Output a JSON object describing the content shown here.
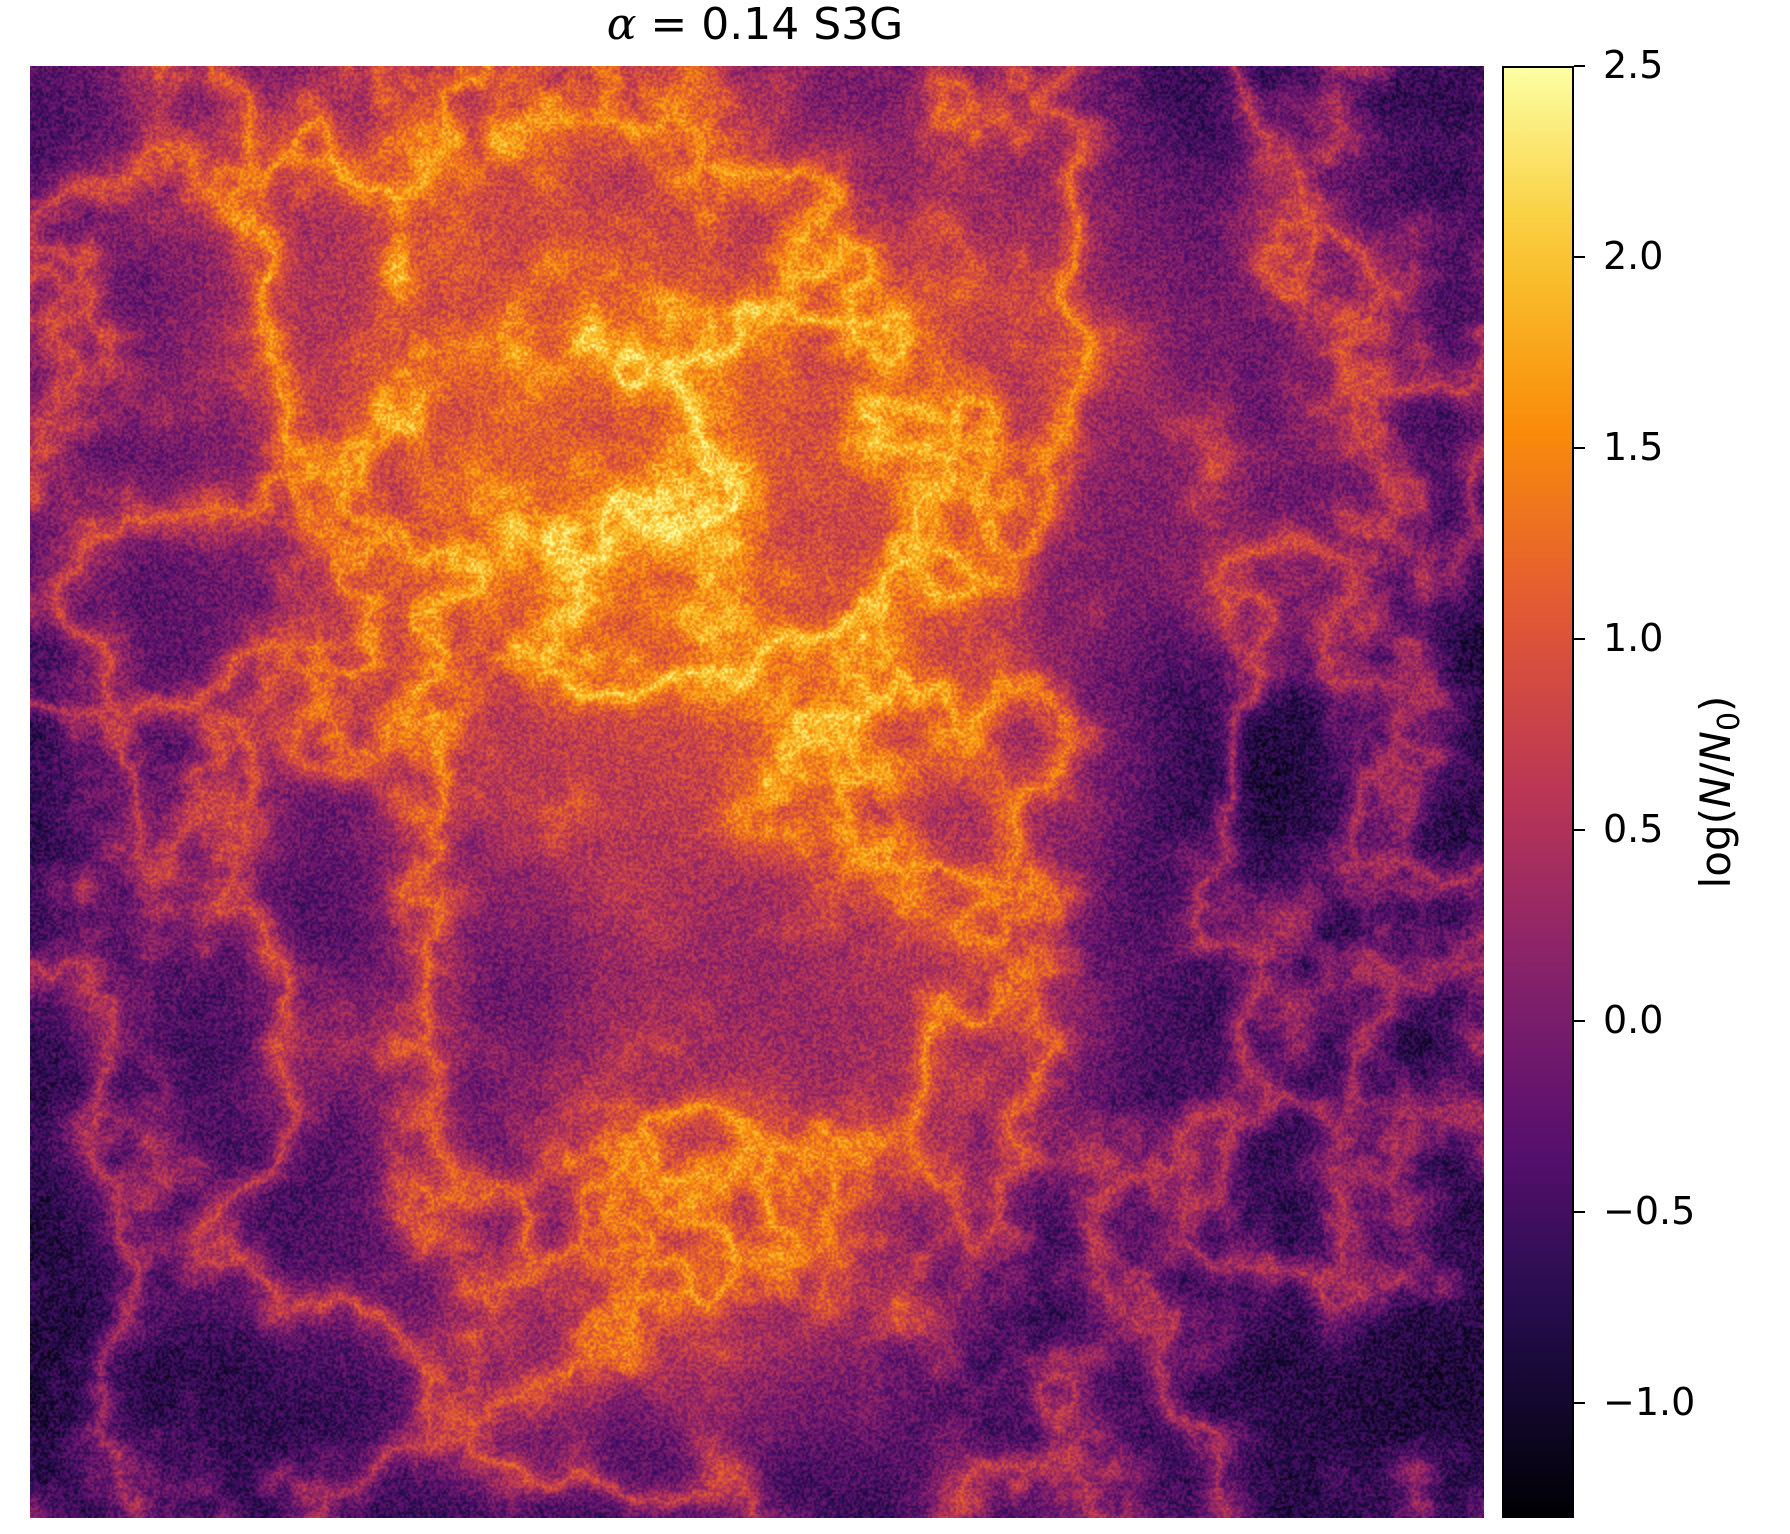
{
  "chart_data": {
    "type": "heatmap",
    "title": {
      "alpha_symbol": "α",
      "rest": " = 0.14 S3G"
    },
    "colormap": "inferno",
    "colorbar": {
      "vmin": -1.3,
      "vmax": 2.5,
      "ticks": [
        2.5,
        2.0,
        1.5,
        1.0,
        0.5,
        0.0,
        -0.5,
        -1.0
      ],
      "tick_labels": [
        "2.5",
        "2.0",
        "1.5",
        "1.0",
        "0.5",
        "0.0",
        "−0.5",
        "−1.0"
      ],
      "label": {
        "prefix": "log(",
        "N": "N",
        "slash": "/",
        "N0": "N",
        "N0_sub": "0",
        "suffix": ")"
      }
    },
    "colorbar_ticks_ref": [
      "2.5",
      "2.0",
      "1.5",
      "1.0",
      "0.5",
      "0.0",
      "−0.5",
      "−1.0"
    ],
    "bright_filaments_note": ""
  }
}
